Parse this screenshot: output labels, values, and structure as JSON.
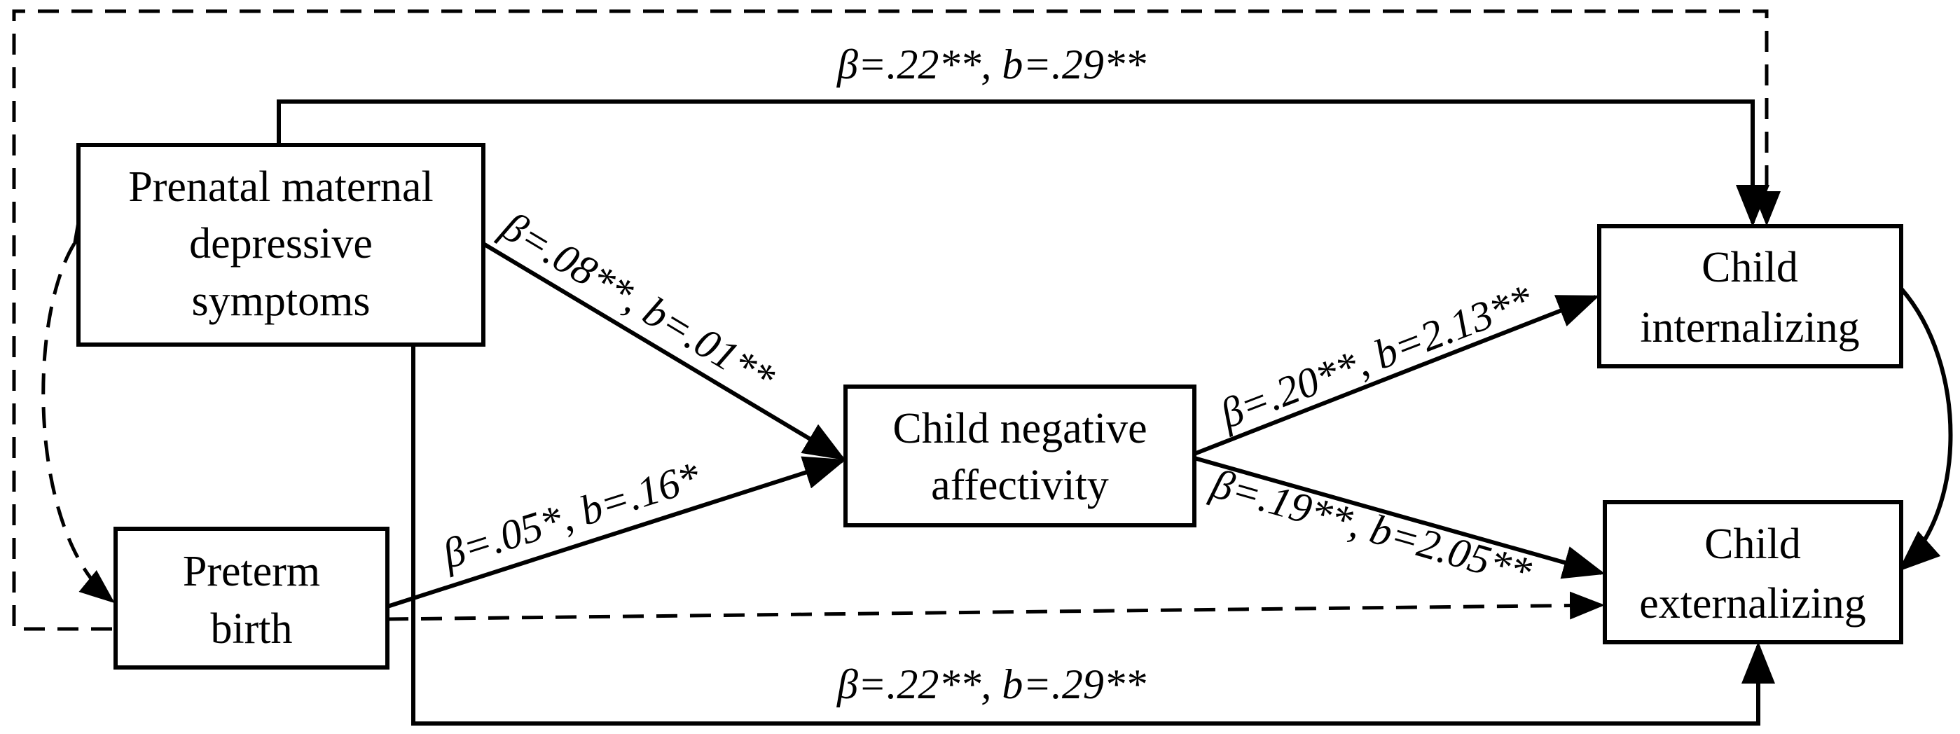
{
  "nodes": {
    "prenatal": {
      "lines": [
        "Prenatal maternal",
        "depressive",
        "symptoms"
      ]
    },
    "preterm": {
      "lines": [
        "Preterm",
        "birth"
      ]
    },
    "negative_affectivity": {
      "lines": [
        "Child negative",
        "affectivity"
      ]
    },
    "internalizing": {
      "lines": [
        "Child",
        "internalizing"
      ]
    },
    "externalizing": {
      "lines": [
        "Child",
        "externalizing"
      ]
    }
  },
  "edges": {
    "prenatal_to_internalizing": {
      "label": "β=.22**, b=.29**",
      "style": "solid"
    },
    "prenatal_to_externalizing": {
      "label": "β=.22**, b=.29**",
      "style": "solid"
    },
    "prenatal_to_negative_affectivity": {
      "label": "β=.08**, b=.01**",
      "style": "solid"
    },
    "preterm_to_negative_affectivity": {
      "label": "β=.05*, b=.16*",
      "style": "solid"
    },
    "negative_affectivity_to_internalizing": {
      "label": "β=.20**, b=2.13**",
      "style": "solid"
    },
    "negative_affectivity_to_externalizing": {
      "label": "β=.19**, b=2.05**",
      "style": "solid"
    },
    "preterm_to_internalizing": {
      "label": "",
      "style": "dashed"
    },
    "preterm_to_externalizing": {
      "label": "",
      "style": "dashed"
    },
    "prenatal_preterm_covariance": {
      "label": "",
      "style": "dashed"
    },
    "internalizing_externalizing_covariance": {
      "label": "",
      "style": "solid"
    }
  }
}
